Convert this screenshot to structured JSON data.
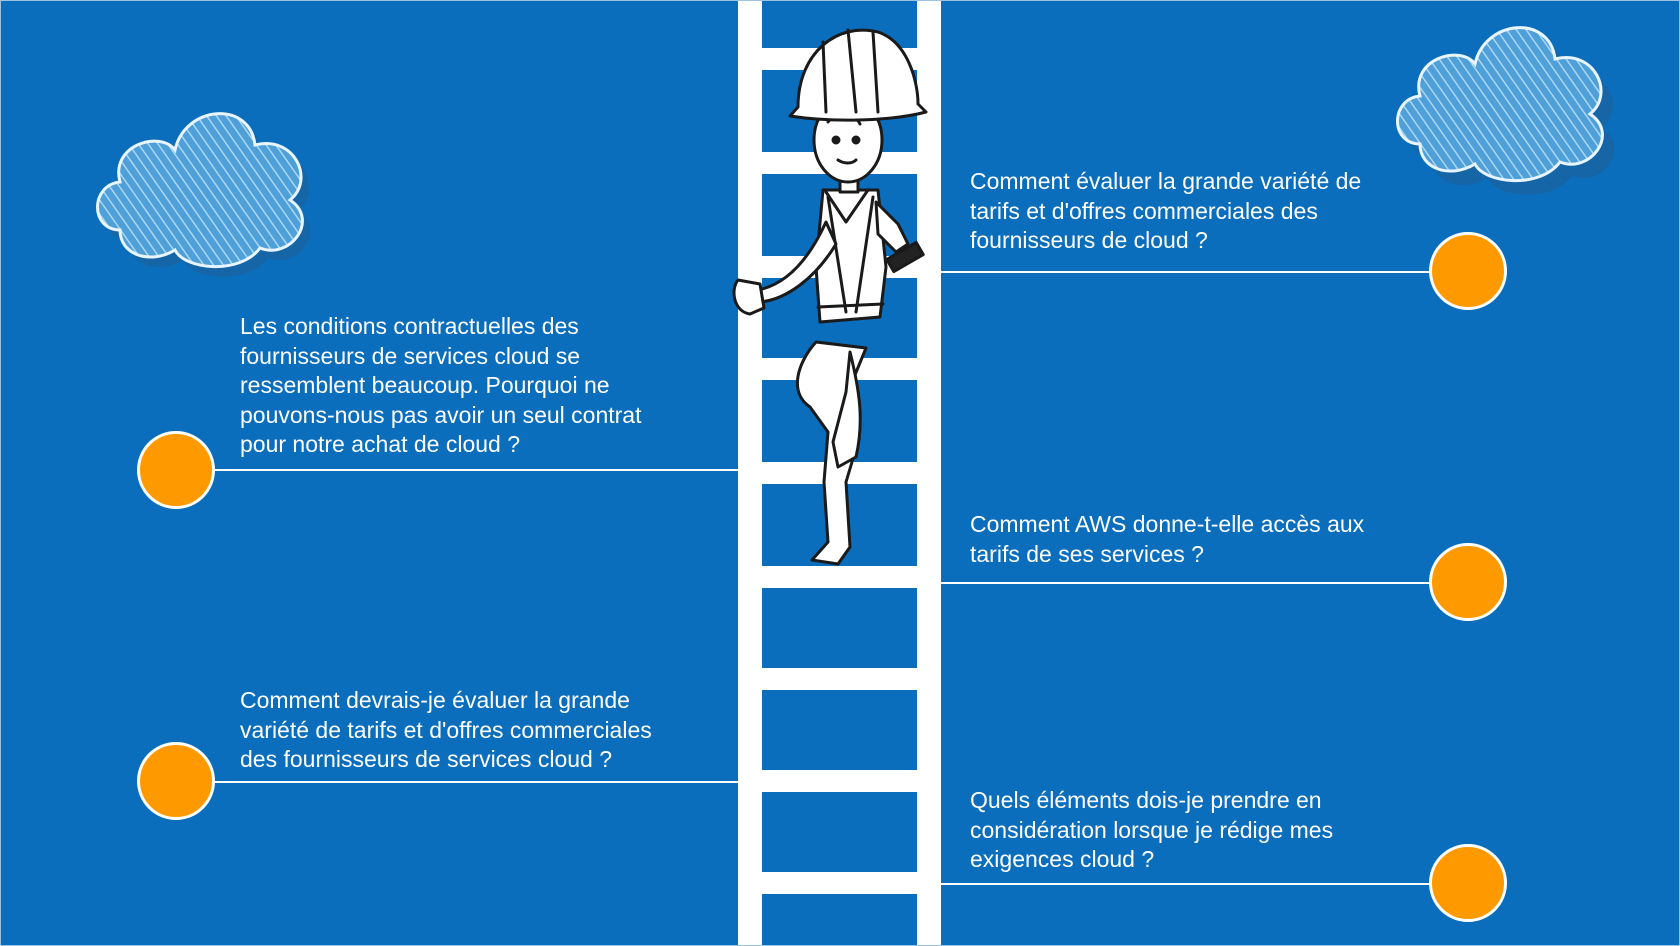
{
  "colors": {
    "background": "#0a6ebd",
    "ladder": "#ffffff",
    "accent_dot": "#ff9900",
    "text": "#ffffff"
  },
  "questions": {
    "left": [
      {
        "text": "Les conditions contractuelles des fournisseurs de services cloud se ressemblent beaucoup. Pourquoi ne pouvons-nous pas avoir un seul contrat pour notre achat de cloud ?"
      },
      {
        "text": "Comment devrais-je évaluer la grande variété de tarifs et d'offres commerciales des fournisseurs de services cloud ?"
      }
    ],
    "right": [
      {
        "text": "Comment évaluer la grande variété de tarifs et d'offres commerciales des fournisseurs de cloud ?"
      },
      {
        "text": "Comment AWS donne-t-elle accès aux tarifs de ses services ?"
      },
      {
        "text": "Quels éléments dois-je prendre en considération lorsque je rédige mes exigences cloud ?"
      }
    ]
  },
  "icons": {
    "cloud_left": "cloud-icon",
    "cloud_right": "cloud-icon",
    "worker": "construction-worker-illustration"
  }
}
